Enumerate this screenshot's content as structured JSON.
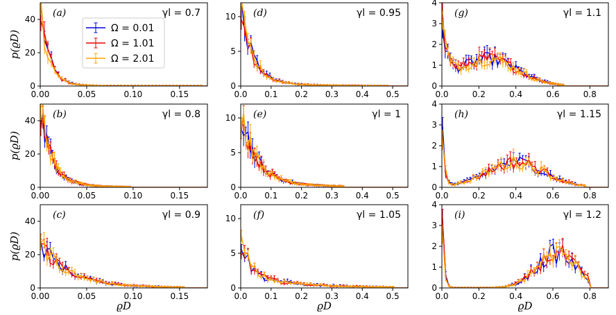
{
  "figure": {
    "ylabel": "p(ϱD)",
    "xlabel": "ϱD"
  },
  "legend": {
    "entries": [
      {
        "label": "Ω = 0.01",
        "color": "#0000dd"
      },
      {
        "label": "Ω = 1.01",
        "color": "#ee0000"
      },
      {
        "label": "Ω = 2.01",
        "color": "#ffa500"
      }
    ]
  },
  "chart_data": [
    {
      "type": "line",
      "panel": "(a)",
      "gamma": "γl = 0.7",
      "xlim": [
        0,
        0.18
      ],
      "ylim": [
        0,
        50
      ],
      "xticks": [
        0,
        0.05,
        0.1,
        0.15
      ],
      "xticklabels": [
        "0.00",
        "0.05",
        "0.10",
        "0.15"
      ],
      "yticks": [
        0,
        20,
        40
      ],
      "yticklabels": [
        "0",
        "20",
        "40"
      ],
      "shape": "spike",
      "decay": 0.009,
      "amp": 48,
      "mid": 0.02,
      "mid_amp": 2,
      "xmax": 0.18,
      "noise": 0.25
    },
    {
      "type": "line",
      "panel": "(d)",
      "gamma": "γl = 0.95",
      "xlim": [
        0,
        0.55
      ],
      "ylim": [
        0,
        12
      ],
      "xticks": [
        0,
        0.1,
        0.2,
        0.3,
        0.4,
        0.5
      ],
      "xticklabels": [
        "0.0",
        "0.1",
        "0.2",
        "0.3",
        "0.4",
        "0.5"
      ],
      "yticks": [
        0,
        5,
        10
      ],
      "yticklabels": [
        "0",
        "5",
        "10"
      ],
      "shape": "spike",
      "decay": 0.04,
      "amp": 11,
      "mid": 0.15,
      "mid_amp": 0.5,
      "xmax": 0.5,
      "noise": 0.22
    },
    {
      "type": "line",
      "panel": "(g)",
      "gamma": "γl = 1.1",
      "xlim": [
        0,
        0.9
      ],
      "ylim": [
        0,
        4
      ],
      "xticks": [
        0,
        0.2,
        0.4,
        0.6,
        0.8
      ],
      "xticklabels": [
        "0.0",
        "0.2",
        "0.4",
        "0.6",
        "0.8"
      ],
      "yticks": [
        0,
        1,
        2,
        3,
        4
      ],
      "yticklabels": [
        "0",
        "1",
        "2",
        "3",
        "4"
      ],
      "shape": "hump",
      "decay": 0.03,
      "amp": 3,
      "mid": 0.25,
      "mid_amp": 1.3,
      "width": 0.22,
      "xmax": 0.68,
      "noise": 0.25
    },
    {
      "type": "line",
      "panel": "(b)",
      "gamma": "γl = 0.8",
      "xlim": [
        0,
        0.18
      ],
      "ylim": [
        0,
        50
      ],
      "xticks": [
        0,
        0.05,
        0.1,
        0.15
      ],
      "xticklabels": [
        "0.00",
        "0.05",
        "0.10",
        "0.15"
      ],
      "yticks": [
        0,
        20,
        40
      ],
      "yticklabels": [
        "0",
        "20",
        "40"
      ],
      "shape": "spike",
      "decay": 0.012,
      "amp": 46,
      "mid": 0.03,
      "mid_amp": 3,
      "xmax": 0.1,
      "noise": 0.25
    },
    {
      "type": "line",
      "panel": "(e)",
      "gamma": "γl = 1",
      "xlim": [
        0,
        0.55
      ],
      "ylim": [
        0,
        12
      ],
      "xticks": [
        0,
        0.1,
        0.2,
        0.3,
        0.4,
        0.5
      ],
      "xticklabels": [
        "0.0",
        "0.1",
        "0.2",
        "0.3",
        "0.4",
        "0.5"
      ],
      "yticks": [
        0,
        5,
        10
      ],
      "yticklabels": [
        "0",
        "5",
        "10"
      ],
      "shape": "spike",
      "decay": 0.05,
      "amp": 10,
      "mid": 0.15,
      "mid_amp": 1,
      "xmax": 0.35,
      "noise": 0.25
    },
    {
      "type": "line",
      "panel": "(h)",
      "gamma": "γl = 1.15",
      "xlim": [
        0,
        0.9
      ],
      "ylim": [
        0,
        4
      ],
      "xticks": [
        0,
        0.2,
        0.4,
        0.6,
        0.8
      ],
      "xticklabels": [
        "0.0",
        "0.2",
        "0.4",
        "0.6",
        "0.8"
      ],
      "yticks": [
        0,
        1,
        2,
        3,
        4
      ],
      "yticklabels": [
        "0",
        "1",
        "2",
        "3",
        "4"
      ],
      "shape": "hump",
      "decay": 0.012,
      "amp": 4,
      "mid": 0.4,
      "mid_amp": 1.2,
      "width": 0.22,
      "xmax": 0.8,
      "noise": 0.28
    },
    {
      "type": "line",
      "panel": "(c)",
      "gamma": "γl = 0.9",
      "xlim": [
        0,
        0.18
      ],
      "ylim": [
        0,
        50
      ],
      "xticks": [
        0,
        0.05,
        0.1,
        0.15
      ],
      "xticklabels": [
        "0.00",
        "0.05",
        "0.10",
        "0.15"
      ],
      "yticks": [
        0,
        20,
        40
      ],
      "yticklabels": [
        "0",
        "20",
        "40"
      ],
      "shape": "spike",
      "decay": 0.03,
      "amp": 25,
      "mid": 0.06,
      "mid_amp": 2,
      "xmax": 0.16,
      "noise": 0.25
    },
    {
      "type": "line",
      "panel": "(f)",
      "gamma": "γl = 1.05",
      "xlim": [
        0,
        0.55
      ],
      "ylim": [
        0,
        12
      ],
      "xticks": [
        0,
        0.1,
        0.2,
        0.3,
        0.4,
        0.5
      ],
      "xticklabels": [
        "0.0",
        "0.1",
        "0.2",
        "0.3",
        "0.4",
        "0.5"
      ],
      "yticks": [
        0,
        5,
        10
      ],
      "yticklabels": [
        "0",
        "5",
        "10"
      ],
      "shape": "spike",
      "decay": 0.03,
      "amp": 5,
      "mid": 0.2,
      "mid_amp": 1.9,
      "width": 0.16,
      "xmax": 0.52,
      "noise": 0.3
    },
    {
      "type": "line",
      "panel": "(i)",
      "gamma": "γl = 1.2",
      "xlim": [
        0,
        0.9
      ],
      "ylim": [
        0,
        4
      ],
      "xticks": [
        0,
        0.2,
        0.4,
        0.6,
        0.8
      ],
      "xticklabels": [
        "0.0",
        "0.2",
        "0.4",
        "0.6",
        "0.8"
      ],
      "yticks": [
        0,
        1,
        2,
        3,
        4
      ],
      "yticklabels": [
        "0",
        "1",
        "2",
        "3",
        "4"
      ],
      "shape": "hump",
      "decay": 0.01,
      "amp": 4,
      "mid": 0.62,
      "mid_amp": 1.65,
      "width": 0.15,
      "xmax": 0.82,
      "noise": 0.3
    }
  ]
}
